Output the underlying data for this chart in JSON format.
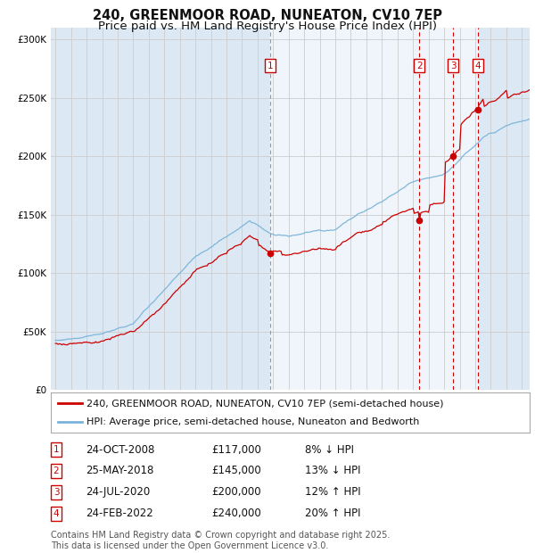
{
  "title": "240, GREENMOOR ROAD, NUNEATON, CV10 7EP",
  "subtitle": "Price paid vs. HM Land Registry's House Price Index (HPI)",
  "ylim": [
    0,
    310000
  ],
  "yticks": [
    0,
    50000,
    100000,
    150000,
    200000,
    250000,
    300000
  ],
  "ytick_labels": [
    "£0",
    "£50K",
    "£100K",
    "£150K",
    "£200K",
    "£250K",
    "£300K"
  ],
  "xlim_start": 1994.7,
  "xlim_end": 2025.5,
  "background_color": "#ffffff",
  "plot_bg_color": "#dce9f5",
  "grid_color": "#cccccc",
  "hpi_color": "#7ab3d8",
  "price_color": "#cc0000",
  "shade_start": 2008.82,
  "shade_end": 2022.17,
  "sale_events": [
    {
      "num": 1,
      "year": 2008.82,
      "price": 117000,
      "label": "1",
      "vline_style": "grey"
    },
    {
      "num": 2,
      "year": 2018.4,
      "price": 145000,
      "label": "2",
      "vline_style": "red"
    },
    {
      "num": 3,
      "year": 2020.57,
      "price": 200000,
      "label": "3",
      "vline_style": "red"
    },
    {
      "num": 4,
      "year": 2022.17,
      "price": 240000,
      "label": "4",
      "vline_style": "red"
    }
  ],
  "legend_red_label": "240, GREENMOOR ROAD, NUNEATON, CV10 7EP (semi-detached house)",
  "legend_blue_label": "HPI: Average price, semi-detached house, Nuneaton and Bedworth",
  "table_rows": [
    {
      "num": "1",
      "date": "24-OCT-2008",
      "price": "£117,000",
      "diff": "8% ↓ HPI"
    },
    {
      "num": "2",
      "date": "25-MAY-2018",
      "price": "£145,000",
      "diff": "13% ↓ HPI"
    },
    {
      "num": "3",
      "date": "24-JUL-2020",
      "price": "£200,000",
      "diff": "12% ↑ HPI"
    },
    {
      "num": "4",
      "date": "24-FEB-2022",
      "price": "£240,000",
      "diff": "20% ↑ HPI"
    }
  ],
  "footnote": "Contains HM Land Registry data © Crown copyright and database right 2025.\nThis data is licensed under the Open Government Licence v3.0.",
  "title_fontsize": 10.5,
  "subtitle_fontsize": 9.5,
  "tick_fontsize": 7.5,
  "legend_fontsize": 8,
  "table_fontsize": 8.5,
  "footnote_fontsize": 7
}
